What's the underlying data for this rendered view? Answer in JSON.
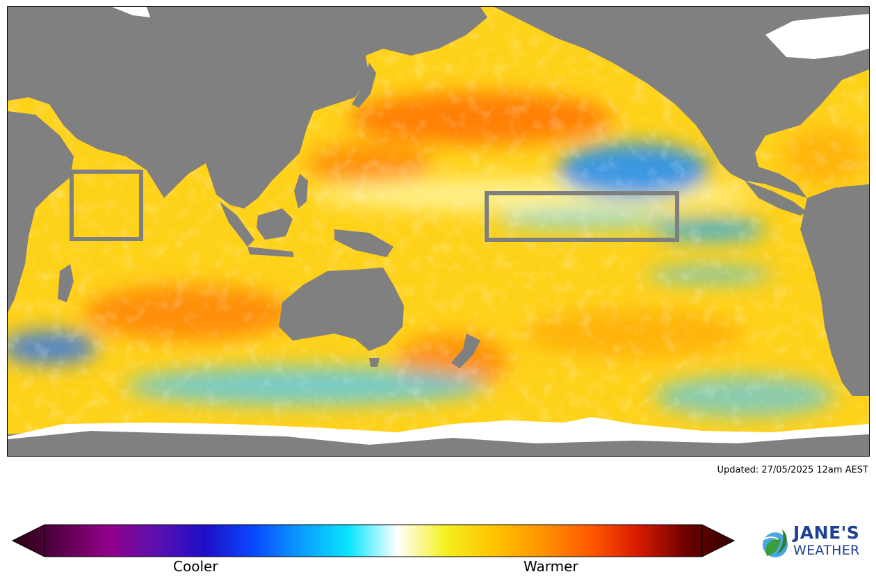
{
  "map": {
    "land_color": "#808080",
    "ice_color": "#ffffff",
    "box_color": "#7f7f7f",
    "regions": [
      "nino34-box",
      "iod-west-box"
    ]
  },
  "updated_text": "Updated: 27/05/2025 12am AEST",
  "colorbar": {
    "cooler_label": "Cooler",
    "warmer_label": "Warmer",
    "colors": [
      "#2a0010",
      "#5a004a",
      "#92008a",
      "#5a10b0",
      "#1e0ec8",
      "#0a48ff",
      "#0a9cff",
      "#0ae6ff",
      "#ffffff",
      "#f4f020",
      "#ffc400",
      "#ff9400",
      "#ff5a00",
      "#d81a00",
      "#6e0000",
      "#300000"
    ]
  },
  "logo": {
    "line1": "JANE'S",
    "line2": "WEATHER",
    "colors": [
      "#1f3f95",
      "#3b9e3b",
      "#4da6e0"
    ]
  }
}
